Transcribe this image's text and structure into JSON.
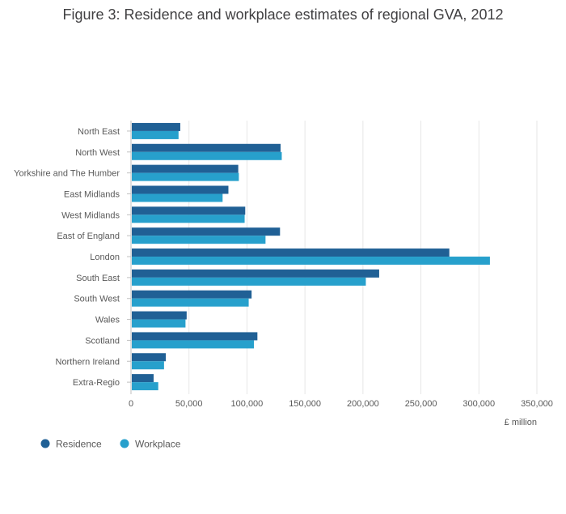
{
  "chart_data": {
    "type": "bar",
    "orientation": "horizontal",
    "title": "Figure 3: Residence and workplace estimates of regional GVA, 2012",
    "xlabel": "£ million",
    "ylabel": "",
    "xlim": [
      0,
      350000
    ],
    "x_ticks": [
      0,
      50000,
      100000,
      150000,
      200000,
      250000,
      300000,
      350000
    ],
    "x_tick_labels": [
      "0",
      "50,000",
      "100,000",
      "150,000",
      "200,000",
      "250,000",
      "300,000",
      "350,000"
    ],
    "grid": "vertical",
    "legend_position": "bottom-left",
    "categories": [
      "North East",
      "North West",
      "Yorkshire and The Humber",
      "East Midlands",
      "West Midlands",
      "East of England",
      "London",
      "South East",
      "South West",
      "Wales",
      "Scotland",
      "Northern Ireland",
      "Extra-Regio"
    ],
    "series": [
      {
        "name": "Residence",
        "color": "#206095",
        "values": [
          42500,
          129000,
          92500,
          84000,
          98500,
          128500,
          274500,
          214000,
          104000,
          48000,
          109000,
          30000,
          19500
        ]
      },
      {
        "name": "Workplace",
        "color": "#27a0cc",
        "values": [
          41000,
          130000,
          93000,
          79000,
          98000,
          116000,
          309500,
          202500,
          101500,
          47000,
          106000,
          28500,
          23500
        ]
      }
    ]
  },
  "colors": {
    "residence": "#206095",
    "workplace": "#27a0cc",
    "gridline": "#e6e6e6",
    "axis": "#bfbfbf",
    "text": "#414042"
  }
}
